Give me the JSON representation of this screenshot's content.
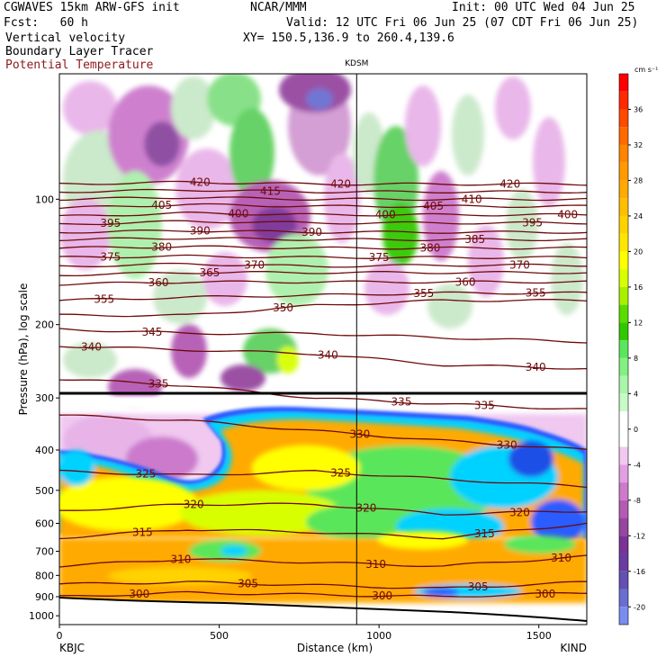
{
  "header": {
    "model": "CGWAVES 15km ARW-GFS init",
    "center": "NCAR/MMM",
    "init": "Init: 00 UTC Wed 04 Jun 25",
    "fcst": "Fcst:   60 h",
    "valid": "Valid: 12 UTC Fri 06 Jun 25 (07 CDT Fri 06 Jun 25)",
    "field1": "Vertical velocity",
    "xy": "XY= 150.5,136.9 to 260.4,139.6",
    "field2": "Boundary Layer Tracer",
    "field3": "Potential Temperature"
  },
  "chart_data": {
    "type": "heatmap",
    "station_label": "KDSM",
    "ylabel": "Pressure (hPa), log scale",
    "xlabel": "Distance (km)",
    "start_label": "KBJC",
    "end_label": "KIND",
    "xlim": [
      0,
      1650
    ],
    "ylim_hpa": [
      1050,
      50
    ],
    "y_scale": "log",
    "x_ticks": [
      "0",
      "500",
      "1000",
      "1500"
    ],
    "x_tick_values": [
      0,
      500,
      1000,
      1500
    ],
    "y_ticks": [
      "100",
      "200",
      "300",
      "400",
      "500",
      "600",
      "700",
      "800",
      "900",
      "1000"
    ],
    "y_tick_values": [
      100,
      200,
      300,
      400,
      500,
      600,
      700,
      800,
      900,
      1000
    ],
    "station_x_km": 930,
    "colorbar": {
      "units": "cm s⁻¹",
      "labels": [
        "36",
        "32",
        "28",
        "24",
        "20",
        "16",
        "12",
        "8",
        "4",
        "0",
        "-4",
        "-8",
        "-12",
        "-16",
        "-20"
      ],
      "levels": [
        40,
        38,
        36,
        34,
        32,
        30,
        28,
        26,
        24,
        22,
        20,
        18,
        16,
        14,
        12,
        10,
        8,
        6,
        4,
        2,
        0,
        -2,
        -4,
        -6,
        -8,
        -10,
        -12,
        -14,
        -16,
        -18,
        -20,
        -22
      ],
      "colors": [
        "#ff0000",
        "#ff2a00",
        "#ff4a00",
        "#ff6a00",
        "#ff8400",
        "#ff9a00",
        "#ffaa00",
        "#ffbe00",
        "#ffd200",
        "#ffe600",
        "#ffff00",
        "#d8ff00",
        "#a8f000",
        "#5adc00",
        "#32c800",
        "#5ae65a",
        "#82f082",
        "#aaf5aa",
        "#c8fac8",
        "#ffffff",
        "#ffffff",
        "#f0c8f0",
        "#e1a0e1",
        "#cc7acc",
        "#b45ab4",
        "#9646a0",
        "#7a3296",
        "#6a3ca0",
        "#6450b4",
        "#6a6ed2",
        "#7a8cf0"
      ]
    },
    "isentropes": [
      {
        "theta": "300",
        "label_x_km": [
          250,
          1010,
          1520
        ]
      },
      {
        "theta": "305",
        "label_x_km": [
          590,
          1310
        ]
      },
      {
        "theta": "310",
        "label_x_km": [
          380,
          990,
          1570
        ]
      },
      {
        "theta": "315",
        "label_x_km": [
          260,
          1330
        ]
      },
      {
        "theta": "320",
        "label_x_km": [
          420,
          960,
          1440
        ]
      },
      {
        "theta": "325",
        "label_x_km": [
          270,
          880
        ]
      },
      {
        "theta": "330",
        "label_x_km": [
          940,
          1400
        ]
      },
      {
        "theta": "335",
        "label_x_km": [
          310,
          1070,
          1330
        ]
      },
      {
        "theta": "340",
        "label_x_km": [
          100,
          840,
          1490
        ]
      },
      {
        "theta": "345",
        "label_x_km": [
          290
        ]
      },
      {
        "theta": "350",
        "label_x_km": [
          700
        ]
      },
      {
        "theta": "355",
        "label_x_km": [
          140,
          1140,
          1490
        ]
      },
      {
        "theta": "360",
        "label_x_km": [
          310,
          1270
        ]
      },
      {
        "theta": "365",
        "label_x_km": [
          470
        ]
      },
      {
        "theta": "370",
        "label_x_km": [
          610,
          1440
        ]
      },
      {
        "theta": "375",
        "label_x_km": [
          160,
          1000
        ]
      },
      {
        "theta": "380",
        "label_x_km": [
          320,
          1160
        ]
      },
      {
        "theta": "385",
        "label_x_km": [
          1300
        ]
      },
      {
        "theta": "390",
        "label_x_km": [
          440,
          790
        ]
      },
      {
        "theta": "395",
        "label_x_km": [
          160,
          1480
        ]
      },
      {
        "theta": "400",
        "label_x_km": [
          560,
          1020,
          1590
        ]
      },
      {
        "theta": "405",
        "label_x_km": [
          320,
          1170
        ]
      },
      {
        "theta": "410",
        "label_x_km": [
          1290
        ]
      },
      {
        "theta": "415",
        "label_x_km": [
          660
        ]
      },
      {
        "theta": "420",
        "label_x_km": [
          440,
          880,
          1410
        ]
      }
    ]
  }
}
